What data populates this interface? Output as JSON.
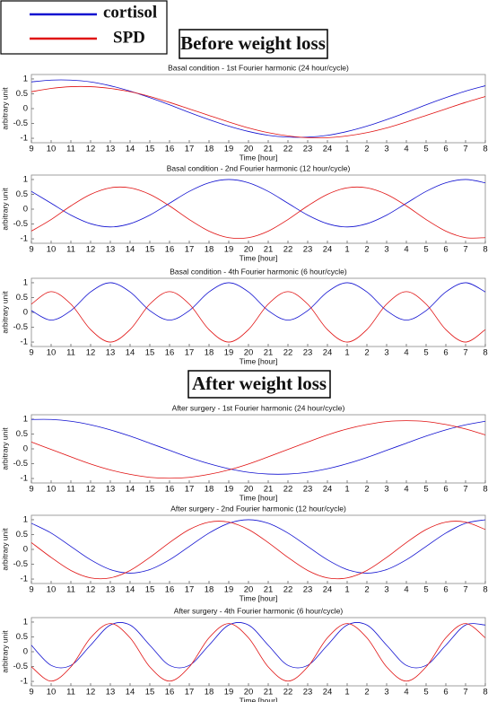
{
  "headings": [
    "Before weight loss",
    "After weight loss"
  ],
  "chart_data": [
    {
      "type": "line",
      "title": "Basal condition - 1st Fourier harmonic (24 hour/cycle)",
      "xlabel": "Time [hour]",
      "ylabel": "arbitrary unit",
      "categories": [
        "9",
        "10",
        "11",
        "12",
        "13",
        "14",
        "15",
        "16",
        "17",
        "18",
        "19",
        "20",
        "21",
        "22",
        "23",
        "24",
        "1",
        "2",
        "3",
        "4",
        "5",
        "6",
        "7",
        "8"
      ],
      "ylim": [
        -1.15,
        1.15
      ],
      "yticks": [
        1,
        0.5,
        0,
        -0.5,
        -1
      ],
      "series": [
        {
          "name": "cortisol",
          "color": "#1010d0",
          "values": [
            0.9,
            0.96,
            0.96,
            0.9,
            0.77,
            0.59,
            0.37,
            0.13,
            -0.13,
            -0.37,
            -0.59,
            -0.77,
            -0.9,
            -0.96,
            -0.96,
            -0.9,
            -0.77,
            -0.59,
            -0.37,
            -0.13,
            0.13,
            0.37,
            0.59,
            0.77
          ]
        },
        {
          "name": "SPD",
          "color": "#e01010",
          "values": [
            0.57,
            0.68,
            0.74,
            0.74,
            0.68,
            0.57,
            0.41,
            0.21,
            -0.01,
            -0.23,
            -0.45,
            -0.65,
            -0.81,
            -0.92,
            -0.98,
            -0.98,
            -0.92,
            -0.81,
            -0.65,
            -0.45,
            -0.23,
            -0.01,
            0.21,
            0.41
          ]
        }
      ]
    },
    {
      "type": "line",
      "title": "Basal condition - 2nd Fourier harmonic (12 hour/cycle)",
      "xlabel": "Time [hour]",
      "ylabel": "arbitrary unit",
      "categories": [
        "9",
        "10",
        "11",
        "12",
        "13",
        "14",
        "15",
        "16",
        "17",
        "18",
        "19",
        "20",
        "21",
        "22",
        "23",
        "24",
        "1",
        "2",
        "3",
        "4",
        "5",
        "6",
        "7",
        "8"
      ],
      "ylim": [
        -1.15,
        1.15
      ],
      "yticks": [
        1,
        0.5,
        0,
        -0.5,
        -1
      ],
      "series": [
        {
          "name": "cortisol",
          "color": "#1010d0",
          "values": [
            0.6,
            0.2,
            -0.2,
            -0.49,
            -0.6,
            -0.49,
            -0.2,
            0.2,
            0.6,
            0.89,
            1.0,
            0.89,
            0.6,
            0.2,
            -0.2,
            -0.49,
            -0.6,
            -0.49,
            -0.2,
            0.2,
            0.6,
            0.89,
            1.0,
            0.89
          ]
        },
        {
          "name": "SPD",
          "color": "#e01010",
          "values": [
            -0.74,
            -0.35,
            0.11,
            0.5,
            0.72,
            0.72,
            0.5,
            0.11,
            -0.35,
            -0.74,
            -0.96,
            -0.96,
            -0.74,
            -0.35,
            0.11,
            0.5,
            0.72,
            0.72,
            0.5,
            0.11,
            -0.35,
            -0.74,
            -0.96,
            -0.96
          ]
        }
      ]
    },
    {
      "type": "line",
      "title": "Basal condition - 4th Fourier harmonic (6 hour/cycle)",
      "xlabel": "Time [hour]",
      "ylabel": "arbitrary unit",
      "categories": [
        "9",
        "10",
        "11",
        "12",
        "13",
        "14",
        "15",
        "16",
        "17",
        "18",
        "19",
        "20",
        "21",
        "22",
        "23",
        "24",
        "1",
        "2",
        "3",
        "4",
        "5",
        "6",
        "7",
        "8"
      ],
      "ylim": [
        -1.15,
        1.15
      ],
      "yticks": [
        1,
        0.5,
        0,
        -0.5,
        -1
      ],
      "series": [
        {
          "name": "cortisol",
          "color": "#1010d0",
          "values": [
            0.06,
            -0.26,
            0.06,
            0.69,
            1.0,
            0.69,
            0.06,
            -0.26,
            0.06,
            0.69,
            1.0,
            0.69,
            0.06,
            -0.26,
            0.06,
            0.69,
            1.0,
            0.69,
            0.06,
            -0.26,
            0.06,
            0.69,
            1.0,
            0.69
          ]
        },
        {
          "name": "SPD",
          "color": "#e01010",
          "values": [
            0.28,
            0.7,
            0.28,
            -0.58,
            -1.0,
            -0.58,
            0.28,
            0.7,
            0.28,
            -0.58,
            -1.0,
            -0.58,
            0.28,
            0.7,
            0.28,
            -0.58,
            -1.0,
            -0.58,
            0.28,
            0.7,
            0.28,
            -0.58,
            -1.0,
            -0.58
          ]
        }
      ]
    },
    {
      "type": "line",
      "title": "After surgery - 1st Fourier harmonic (24 hour/cycle)",
      "xlabel": "Time [hour]",
      "ylabel": "arbitrary unit",
      "categories": [
        "9",
        "10",
        "11",
        "12",
        "13",
        "14",
        "15",
        "16",
        "17",
        "18",
        "19",
        "20",
        "21",
        "22",
        "23",
        "24",
        "1",
        "2",
        "3",
        "4",
        "5",
        "6",
        "7",
        "8"
      ],
      "ylim": [
        -1.15,
        1.15
      ],
      "yticks": [
        1,
        0.5,
        0,
        -0.5,
        -1
      ],
      "series": [
        {
          "name": "cortisol",
          "color": "#1010d0",
          "values": [
            0.99,
            0.99,
            0.93,
            0.81,
            0.64,
            0.43,
            0.19,
            -0.05,
            -0.29,
            -0.5,
            -0.67,
            -0.79,
            -0.85,
            -0.85,
            -0.79,
            -0.67,
            -0.5,
            -0.29,
            -0.05,
            0.19,
            0.43,
            0.64,
            0.81,
            0.93
          ]
        },
        {
          "name": "SPD",
          "color": "#e01010",
          "values": [
            0.23,
            -0.02,
            -0.27,
            -0.51,
            -0.71,
            -0.86,
            -0.96,
            -0.99,
            -0.96,
            -0.86,
            -0.71,
            -0.51,
            -0.27,
            -0.02,
            0.23,
            0.47,
            0.67,
            0.82,
            0.92,
            0.95,
            0.92,
            0.82,
            0.67,
            0.47
          ]
        }
      ]
    },
    {
      "type": "line",
      "title": "After surgery - 2nd Fourier harmonic (12 hour/cycle)",
      "xlabel": "Time [hour]",
      "ylabel": "arbitrary unit",
      "categories": [
        "9",
        "10",
        "11",
        "12",
        "13",
        "14",
        "15",
        "16",
        "17",
        "18",
        "19",
        "20",
        "21",
        "22",
        "23",
        "24",
        "1",
        "2",
        "3",
        "4",
        "5",
        "6",
        "7",
        "8"
      ],
      "ylim": [
        -1.15,
        1.15
      ],
      "yticks": [
        1,
        0.5,
        0,
        -0.5,
        -1
      ],
      "series": [
        {
          "name": "cortisol",
          "color": "#1010d0",
          "values": [
            0.88,
            0.55,
            0.1,
            -0.35,
            -0.68,
            -0.8,
            -0.68,
            -0.35,
            0.1,
            0.55,
            0.88,
            1.0,
            0.88,
            0.55,
            0.1,
            -0.35,
            -0.68,
            -0.8,
            -0.68,
            -0.35,
            0.1,
            0.55,
            0.88,
            1.0
          ]
        },
        {
          "name": "SPD",
          "color": "#e01010",
          "values": [
            0.23,
            -0.27,
            -0.71,
            -0.96,
            -0.96,
            -0.71,
            -0.27,
            0.23,
            0.67,
            0.92,
            0.92,
            0.67,
            0.23,
            -0.27,
            -0.71,
            -0.96,
            -0.96,
            -0.71,
            -0.27,
            0.23,
            0.67,
            0.92,
            0.92,
            0.67
          ]
        }
      ]
    },
    {
      "type": "line",
      "title": "After surgery - 4th Fourier harmonic (6 hour/cycle)",
      "xlabel": "Time [hour]",
      "ylabel": "arbitrary unit",
      "categories": [
        "9",
        "10",
        "11",
        "12",
        "13",
        "14",
        "15",
        "16",
        "17",
        "18",
        "19",
        "20",
        "21",
        "22",
        "23",
        "24",
        "1",
        "2",
        "3",
        "4",
        "5",
        "6",
        "7",
        "8"
      ],
      "ylim": [
        -1.15,
        1.15
      ],
      "yticks": [
        1,
        0.5,
        0,
        -0.5,
        -1
      ],
      "series": [
        {
          "name": "cortisol",
          "color": "#1010d0",
          "values": [
            0.22,
            -0.46,
            -0.46,
            0.22,
            0.9,
            0.9,
            0.22,
            -0.46,
            -0.46,
            0.22,
            0.9,
            0.9,
            0.22,
            -0.46,
            -0.46,
            0.22,
            0.9,
            0.9,
            0.22,
            -0.46,
            -0.46,
            0.22,
            0.9,
            0.9
          ]
        },
        {
          "name": "SPD",
          "color": "#e01010",
          "values": [
            -0.51,
            -0.99,
            -0.51,
            0.47,
            0.95,
            0.47,
            -0.51,
            -0.99,
            -0.51,
            0.47,
            0.95,
            0.47,
            -0.51,
            -0.99,
            -0.51,
            0.47,
            0.95,
            0.47,
            -0.51,
            -0.99,
            -0.51,
            0.47,
            0.95,
            0.47
          ]
        }
      ]
    }
  ]
}
